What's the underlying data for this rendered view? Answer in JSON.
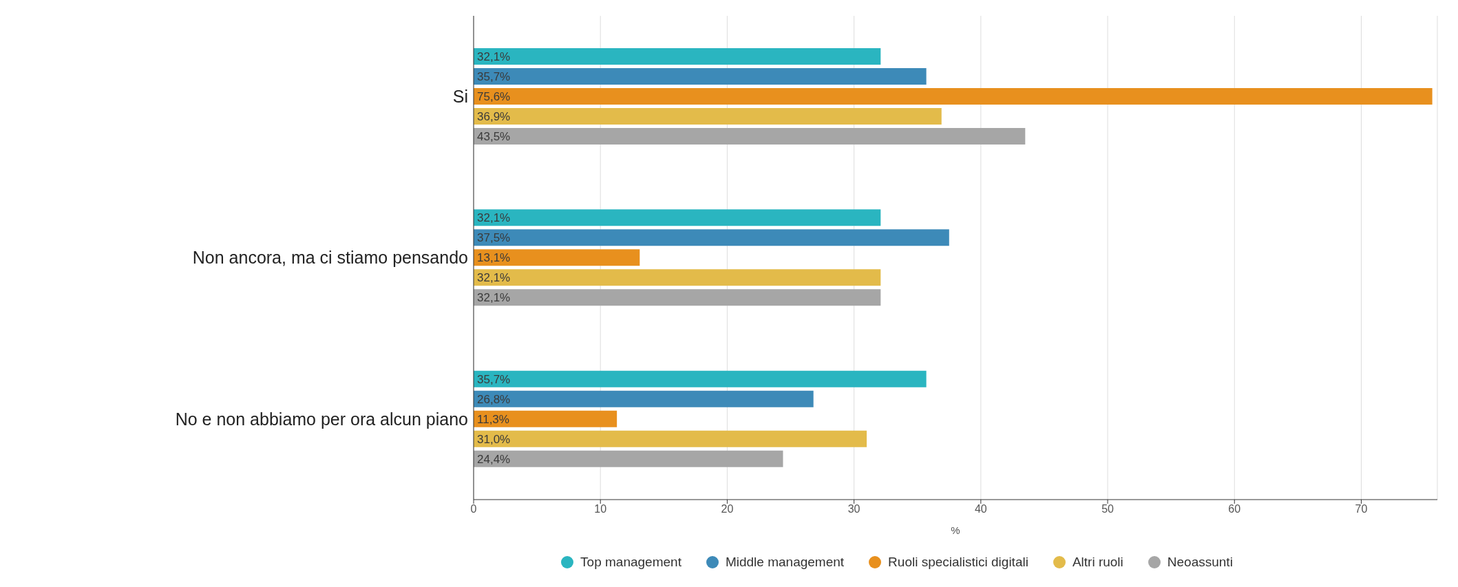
{
  "chart_data": {
    "type": "bar",
    "orientation": "horizontal",
    "xlabel": "%",
    "categories": [
      "Si",
      "Non ancora, ma ci stiamo pensando",
      "No e non abbiamo per ora alcun piano"
    ],
    "series": [
      {
        "name": "Top management",
        "color": "#2ab5c0",
        "values": [
          32.1,
          32.1,
          35.7
        ],
        "value_labels": [
          "32,1%",
          "32,1%",
          "35,7%"
        ]
      },
      {
        "name": "Middle management",
        "color": "#3d8ab8",
        "values": [
          35.7,
          37.5,
          26.8
        ],
        "value_labels": [
          "35,7%",
          "37,5%",
          "26,8%"
        ]
      },
      {
        "name": "Ruoli specialistici digitali",
        "color": "#e8901e",
        "values": [
          75.6,
          13.1,
          11.3
        ],
        "value_labels": [
          "75,6%",
          "13,1%",
          "11,3%"
        ]
      },
      {
        "name": "Altri ruoli",
        "color": "#e3bb4a",
        "values": [
          36.9,
          32.1,
          31.0
        ],
        "value_labels": [
          "36,9%",
          "32,1%",
          "31,0%"
        ]
      },
      {
        "name": "Neoassunti",
        "color": "#a6a6a6",
        "values": [
          43.5,
          32.1,
          24.4
        ],
        "value_labels": [
          "43,5%",
          "32,1%",
          "24,4%"
        ]
      }
    ],
    "xlim": [
      0,
      76
    ],
    "xticks": [
      0,
      10,
      20,
      30,
      40,
      50,
      60,
      70
    ],
    "grid": "x",
    "legend": "bottom"
  }
}
